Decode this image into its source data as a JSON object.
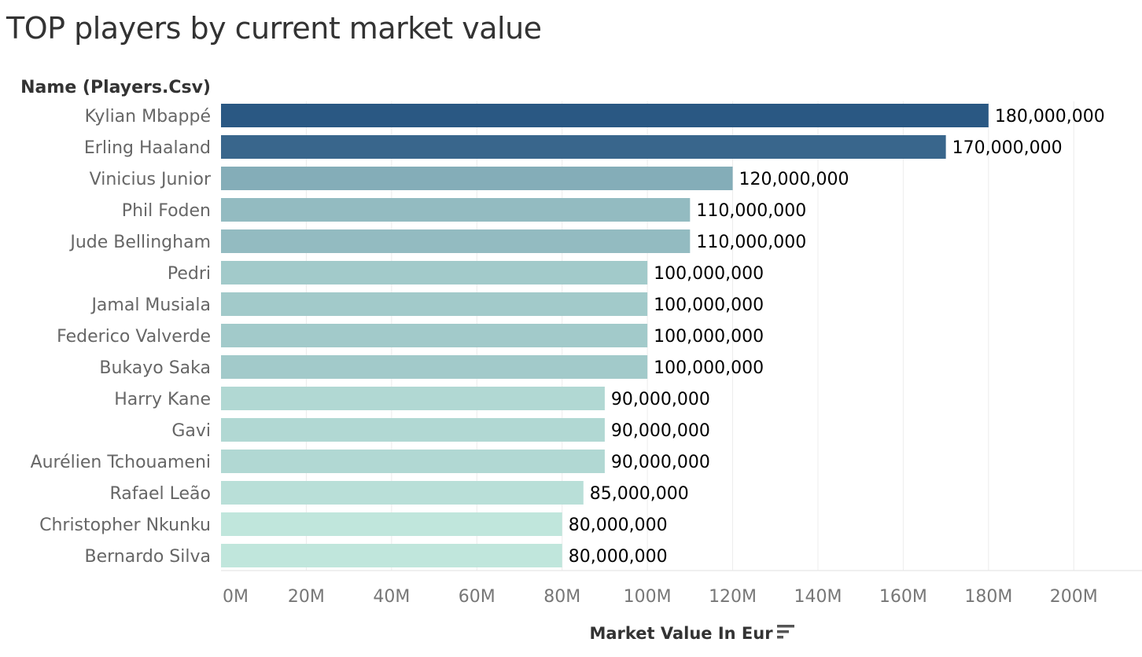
{
  "chart_data": {
    "type": "bar",
    "orientation": "horizontal",
    "title": "TOP players by current market value",
    "row_header": "Name (Players.Csv)",
    "xlabel": "Market Value In Eur",
    "categories": [
      "Kylian Mbappé",
      "Erling Haaland",
      "Vinicius Junior",
      "Phil Foden",
      "Jude Bellingham",
      "Pedri",
      "Jamal Musiala",
      "Federico Valverde",
      "Bukayo Saka",
      "Harry Kane",
      "Gavi",
      "Aurélien Tchouameni",
      "Rafael Leão",
      "Christopher Nkunku",
      "Bernardo Silva"
    ],
    "values": [
      180000000,
      170000000,
      120000000,
      110000000,
      110000000,
      100000000,
      100000000,
      100000000,
      100000000,
      90000000,
      90000000,
      90000000,
      85000000,
      80000000,
      80000000
    ],
    "value_labels": [
      "180,000,000",
      "170,000,000",
      "120,000,000",
      "110,000,000",
      "110,000,000",
      "100,000,000",
      "100,000,000",
      "100,000,000",
      "100,000,000",
      "90,000,000",
      "90,000,000",
      "90,000,000",
      "85,000,000",
      "80,000,000",
      "80,000,000"
    ],
    "xlim": [
      0,
      216000000
    ],
    "xticks": [
      0,
      20000000,
      40000000,
      60000000,
      80000000,
      100000000,
      120000000,
      140000000,
      160000000,
      180000000,
      200000000
    ],
    "xtick_labels": [
      "0M",
      "20M",
      "40M",
      "60M",
      "80M",
      "100M",
      "120M",
      "140M",
      "160M",
      "180M",
      "200M"
    ],
    "color_scale": [
      "#c0e6dc",
      "#2a5883"
    ],
    "grid": true,
    "legend": "none"
  },
  "icons": {
    "sort": "sort-descending-icon"
  }
}
